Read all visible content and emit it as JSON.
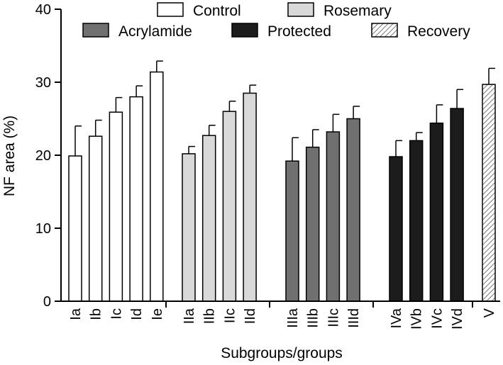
{
  "chart_data": {
    "type": "bar",
    "title": "",
    "xlabel": "Subgroups/groups",
    "ylabel": "NF area (%)",
    "ylim": [
      0,
      40
    ],
    "yticks": [
      0,
      10,
      20,
      30,
      40
    ],
    "grid": false,
    "legend_position": "top",
    "series": [
      {
        "name": "Control",
        "key": "control",
        "color": "#ffffff",
        "pattern": "none",
        "categories": [
          "Ia",
          "Ib",
          "Ic",
          "Id",
          "Ie"
        ],
        "values": [
          19.9,
          22.6,
          25.9,
          28.0,
          31.4
        ],
        "errors": [
          4.1,
          2.2,
          2.0,
          1.5,
          1.5
        ]
      },
      {
        "name": "Rosemary",
        "key": "rosemary",
        "color": "#d9d9d9",
        "pattern": "none",
        "categories": [
          "IIa",
          "IIb",
          "IIc",
          "IId"
        ],
        "values": [
          20.2,
          22.7,
          26.0,
          28.5
        ],
        "errors": [
          1.0,
          1.4,
          1.4,
          1.1
        ]
      },
      {
        "name": "Acrylamide",
        "key": "acrylamide",
        "color": "#707070",
        "pattern": "none",
        "categories": [
          "IIIa",
          "IIIb",
          "IIIc",
          "IIId"
        ],
        "values": [
          19.2,
          21.1,
          23.2,
          25.0
        ],
        "errors": [
          3.2,
          2.4,
          2.4,
          1.7
        ]
      },
      {
        "name": "Protected",
        "key": "protected",
        "color": "#1c1c1c",
        "pattern": "none",
        "categories": [
          "IVa",
          "IVb",
          "IVc",
          "IVd"
        ],
        "values": [
          19.8,
          22.0,
          24.4,
          26.4
        ],
        "errors": [
          2.2,
          1.1,
          2.5,
          2.6
        ]
      },
      {
        "name": "Recovery",
        "key": "recovery",
        "color": "#ffffff",
        "pattern": "hatch",
        "categories": [
          "V"
        ],
        "values": [
          29.7
        ],
        "errors": [
          2.2
        ]
      }
    ]
  }
}
